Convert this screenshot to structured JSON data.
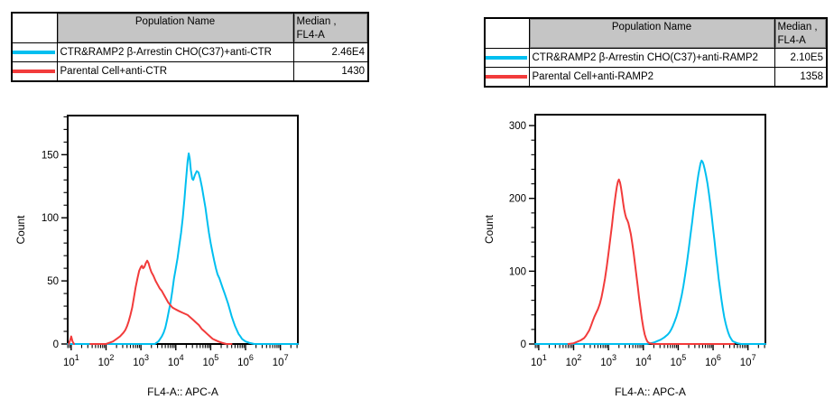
{
  "colors": {
    "series_cyan": "#00BFF0",
    "series_red": "#F23B3B",
    "header_gray": "#C5C5C5",
    "axis": "#000000"
  },
  "legend_tables": [
    {
      "header": {
        "population": "Population Name",
        "median_line1": "Median ,",
        "median_line2": "FL4-A"
      },
      "rows": [
        {
          "color": "#00BFF0",
          "population": "CTR&RAMP2 β-Arrestin CHO(C37)+anti-CTR",
          "median": "2.46E4"
        },
        {
          "color": "#F23B3B",
          "population": "Parental Cell+anti-CTR",
          "median": "1430"
        }
      ]
    },
    {
      "header": {
        "population": "Population Name",
        "median_line1": "Median ,",
        "median_line2": "FL4-A"
      },
      "rows": [
        {
          "color": "#00BFF0",
          "population": "CTR&RAMP2 β-Arrestin CHO(C37)+anti-RAMP2",
          "median": "2.10E5"
        },
        {
          "color": "#F23B3B",
          "population": "Parental Cell+anti-RAMP2",
          "median": "1358"
        }
      ]
    }
  ],
  "chart_data": [
    {
      "type": "line",
      "title": "",
      "xlabel": "FL4-A:: APC-A",
      "ylabel": "Count",
      "x_scale": "log10",
      "xlim_log10": [
        0.9,
        7.5
      ],
      "ylim": [
        0,
        181
      ],
      "yticks": [
        0,
        50,
        100,
        150
      ],
      "y_minor_step": 10,
      "x_decades": [
        1,
        2,
        3,
        4,
        5,
        6,
        7
      ],
      "grid": false,
      "legend_position": "table-above",
      "series": [
        {
          "name": "CTR&RAMP2 β-Arrestin CHO(C37)+anti-CTR",
          "color": "#00BFF0",
          "median_fl4a": "2.46E4",
          "segments": [
            [
              [
                0.9,
                0
              ],
              [
                3.4,
                0
              ],
              [
                3.45,
                1
              ],
              [
                3.5,
                2
              ],
              [
                3.55,
                4
              ],
              [
                3.6,
                6
              ],
              [
                3.65,
                9
              ],
              [
                3.7,
                13
              ],
              [
                3.75,
                19
              ],
              [
                3.8,
                26
              ],
              [
                3.85,
                33
              ],
              [
                3.9,
                42
              ],
              [
                3.95,
                52
              ],
              [
                4.0,
                60
              ],
              [
                4.05,
                68
              ],
              [
                4.1,
                78
              ],
              [
                4.15,
                88
              ],
              [
                4.2,
                100
              ],
              [
                4.25,
                115
              ],
              [
                4.28,
                126
              ],
              [
                4.31,
                136
              ],
              [
                4.34,
                145
              ],
              [
                4.37,
                151
              ],
              [
                4.4,
                147
              ],
              [
                4.43,
                138
              ],
              [
                4.47,
                131
              ],
              [
                4.5,
                130
              ],
              [
                4.55,
                134
              ],
              [
                4.6,
                137
              ],
              [
                4.65,
                136
              ],
              [
                4.7,
                131
              ],
              [
                4.75,
                124
              ],
              [
                4.8,
                116
              ],
              [
                4.85,
                108
              ],
              [
                4.9,
                98
              ],
              [
                4.95,
                88
              ],
              [
                5.0,
                80
              ],
              [
                5.05,
                73
              ],
              [
                5.1,
                66
              ],
              [
                5.15,
                60
              ],
              [
                5.2,
                55
              ],
              [
                5.25,
                52
              ],
              [
                5.3,
                48
              ],
              [
                5.35,
                44
              ],
              [
                5.4,
                40
              ],
              [
                5.45,
                36
              ],
              [
                5.5,
                32
              ],
              [
                5.55,
                27
              ],
              [
                5.6,
                22
              ],
              [
                5.65,
                18
              ],
              [
                5.7,
                14
              ],
              [
                5.75,
                11
              ],
              [
                5.8,
                8
              ],
              [
                5.85,
                6
              ],
              [
                5.9,
                4
              ],
              [
                6.0,
                2
              ],
              [
                6.1,
                1
              ],
              [
                6.25,
                0
              ],
              [
                7.5,
                0
              ]
            ]
          ]
        },
        {
          "name": "Parental Cell+anti-CTR",
          "color": "#F23B3B",
          "median_fl4a": "1430",
          "segments": [
            [
              [
                0.93,
                0
              ],
              [
                0.97,
                3
              ],
              [
                1.0,
                6
              ],
              [
                1.04,
                2
              ],
              [
                1.08,
                0
              ]
            ],
            [
              [
                1.55,
                0
              ],
              [
                2.0,
                0
              ],
              [
                2.1,
                1
              ],
              [
                2.2,
                2
              ],
              [
                2.3,
                4
              ],
              [
                2.4,
                6
              ],
              [
                2.5,
                9
              ],
              [
                2.55,
                11
              ],
              [
                2.6,
                14
              ],
              [
                2.65,
                18
              ],
              [
                2.7,
                23
              ],
              [
                2.75,
                29
              ],
              [
                2.8,
                37
              ],
              [
                2.85,
                45
              ],
              [
                2.9,
                52
              ],
              [
                2.95,
                58
              ],
              [
                3.0,
                61
              ],
              [
                3.03,
                62
              ],
              [
                3.06,
                60
              ],
              [
                3.1,
                61
              ],
              [
                3.14,
                64
              ],
              [
                3.18,
                66
              ],
              [
                3.22,
                64
              ],
              [
                3.26,
                60
              ],
              [
                3.3,
                57
              ],
              [
                3.36,
                54
              ],
              [
                3.42,
                50
              ],
              [
                3.48,
                47
              ],
              [
                3.54,
                44
              ],
              [
                3.6,
                42
              ],
              [
                3.66,
                39
              ],
              [
                3.72,
                36
              ],
              [
                3.78,
                33
              ],
              [
                3.84,
                31
              ],
              [
                3.9,
                29
              ],
              [
                3.96,
                28
              ],
              [
                4.03,
                27
              ],
              [
                4.1,
                26
              ],
              [
                4.18,
                25
              ],
              [
                4.26,
                24
              ],
              [
                4.34,
                23
              ],
              [
                4.42,
                21
              ],
              [
                4.5,
                19
              ],
              [
                4.58,
                17
              ],
              [
                4.66,
                15
              ],
              [
                4.74,
                12
              ],
              [
                4.82,
                10
              ],
              [
                4.9,
                8
              ],
              [
                4.98,
                6
              ],
              [
                5.06,
                4
              ],
              [
                5.14,
                3
              ],
              [
                5.22,
                2
              ],
              [
                5.32,
                1
              ],
              [
                5.45,
                0
              ],
              [
                5.6,
                0
              ]
            ]
          ]
        }
      ]
    },
    {
      "type": "line",
      "title": "",
      "xlabel": "FL4-A:: APC-A",
      "ylabel": "Count",
      "x_scale": "log10",
      "xlim_log10": [
        0.9,
        7.5
      ],
      "ylim": [
        0,
        315
      ],
      "yticks": [
        0,
        100,
        200,
        300
      ],
      "y_minor_step": 20,
      "x_decades": [
        1,
        2,
        3,
        4,
        5,
        6,
        7
      ],
      "grid": false,
      "legend_position": "table-above",
      "series": [
        {
          "name": "CTR&RAMP2 β-Arrestin CHO(C37)+anti-RAMP2",
          "color": "#00BFF0",
          "median_fl4a": "2.10E5",
          "segments": [
            [
              [
                0.9,
                0
              ],
              [
                4.1,
                0
              ],
              [
                4.2,
                1
              ],
              [
                4.3,
                2
              ],
              [
                4.4,
                4
              ],
              [
                4.5,
                6
              ],
              [
                4.6,
                9
              ],
              [
                4.7,
                13
              ],
              [
                4.75,
                16
              ],
              [
                4.8,
                20
              ],
              [
                4.85,
                25
              ],
              [
                4.9,
                31
              ],
              [
                4.95,
                38
              ],
              [
                5.0,
                46
              ],
              [
                5.05,
                56
              ],
              [
                5.1,
                67
              ],
              [
                5.15,
                80
              ],
              [
                5.2,
                95
              ],
              [
                5.25,
                112
              ],
              [
                5.3,
                130
              ],
              [
                5.35,
                149
              ],
              [
                5.4,
                168
              ],
              [
                5.44,
                184
              ],
              [
                5.48,
                199
              ],
              [
                5.52,
                213
              ],
              [
                5.55,
                224
              ],
              [
                5.58,
                233
              ],
              [
                5.61,
                241
              ],
              [
                5.64,
                248
              ],
              [
                5.67,
                252
              ],
              [
                5.7,
                250
              ],
              [
                5.73,
                246
              ],
              [
                5.76,
                240
              ],
              [
                5.8,
                231
              ],
              [
                5.84,
                220
              ],
              [
                5.88,
                207
              ],
              [
                5.92,
                192
              ],
              [
                5.96,
                176
              ],
              [
                6.0,
                159
              ],
              [
                6.04,
                142
              ],
              [
                6.08,
                124
              ],
              [
                6.12,
                107
              ],
              [
                6.16,
                90
              ],
              [
                6.2,
                75
              ],
              [
                6.24,
                61
              ],
              [
                6.28,
                48
              ],
              [
                6.32,
                37
              ],
              [
                6.36,
                28
              ],
              [
                6.4,
                21
              ],
              [
                6.44,
                15
              ],
              [
                6.48,
                10
              ],
              [
                6.52,
                7
              ],
              [
                6.56,
                4
              ],
              [
                6.6,
                3
              ],
              [
                6.65,
                2
              ],
              [
                6.7,
                1
              ],
              [
                6.8,
                0
              ],
              [
                7.5,
                0
              ]
            ]
          ]
        },
        {
          "name": "Parental Cell+anti-RAMP2",
          "color": "#F23B3B",
          "median_fl4a": "1358",
          "segments": [
            [
              [
                1.85,
                0
              ],
              [
                2.0,
                1
              ],
              [
                2.1,
                3
              ],
              [
                2.2,
                5
              ],
              [
                2.3,
                8
              ],
              [
                2.35,
                11
              ],
              [
                2.4,
                15
              ],
              [
                2.45,
                19
              ],
              [
                2.5,
                25
              ],
              [
                2.55,
                32
              ],
              [
                2.6,
                38
              ],
              [
                2.65,
                43
              ],
              [
                2.7,
                48
              ],
              [
                2.75,
                55
              ],
              [
                2.8,
                64
              ],
              [
                2.85,
                76
              ],
              [
                2.9,
                90
              ],
              [
                2.95,
                106
              ],
              [
                3.0,
                124
              ],
              [
                3.05,
                144
              ],
              [
                3.1,
                163
              ],
              [
                3.14,
                180
              ],
              [
                3.18,
                196
              ],
              [
                3.21,
                207
              ],
              [
                3.24,
                216
              ],
              [
                3.27,
                223
              ],
              [
                3.3,
                226
              ],
              [
                3.33,
                222
              ],
              [
                3.36,
                215
              ],
              [
                3.39,
                205
              ],
              [
                3.42,
                194
              ],
              [
                3.45,
                185
              ],
              [
                3.48,
                178
              ],
              [
                3.51,
                173
              ],
              [
                3.54,
                170
              ],
              [
                3.57,
                166
              ],
              [
                3.6,
                160
              ],
              [
                3.64,
                151
              ],
              [
                3.68,
                139
              ],
              [
                3.72,
                125
              ],
              [
                3.76,
                110
              ],
              [
                3.8,
                95
              ],
              [
                3.84,
                79
              ],
              [
                3.88,
                63
              ],
              [
                3.92,
                48
              ],
              [
                3.96,
                34
              ],
              [
                4.0,
                22
              ],
              [
                4.04,
                13
              ],
              [
                4.08,
                7
              ],
              [
                4.12,
                3
              ],
              [
                4.18,
                1
              ],
              [
                4.3,
                0
              ],
              [
                6.6,
                0
              ]
            ]
          ]
        }
      ]
    }
  ]
}
